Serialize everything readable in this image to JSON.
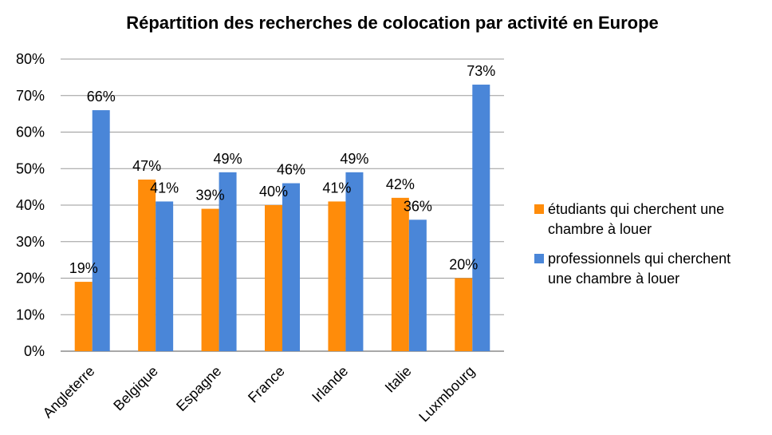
{
  "chart_data": {
    "type": "bar",
    "title": "Répartition des recherches de colocation par activité en Europe",
    "xlabel": "",
    "ylabel": "",
    "categories": [
      "Angleterre",
      "Belgique",
      "Espagne",
      "France",
      "Irlande",
      "Italie",
      "Luxmbourg"
    ],
    "series": [
      {
        "name": "étudiants qui cherchent une chambre à louer",
        "legend_lines": [
          "étudiants qui cherchent une",
          "chambre à louer"
        ],
        "color": "#FF8C0A",
        "values": [
          19,
          47,
          39,
          40,
          41,
          42,
          20
        ],
        "labels": [
          "19%",
          "47%",
          "39%",
          "40%",
          "41%",
          "42%",
          "20%"
        ]
      },
      {
        "name": "professionnels qui cherchent une chambre à louer",
        "legend_lines": [
          "professionnels qui cherchent",
          "une chambre à louer"
        ],
        "color": "#4A86D8",
        "values": [
          66,
          41,
          49,
          46,
          49,
          36,
          73
        ],
        "labels": [
          "66%",
          "41%",
          "49%",
          "46%",
          "49%",
          "36%",
          "73%"
        ]
      }
    ],
    "ylim": [
      0,
      80
    ],
    "yticks": [
      "0%",
      "10%",
      "20%",
      "30%",
      "40%",
      "50%",
      "60%",
      "70%",
      "80%"
    ],
    "grid": true,
    "legend": "right"
  }
}
